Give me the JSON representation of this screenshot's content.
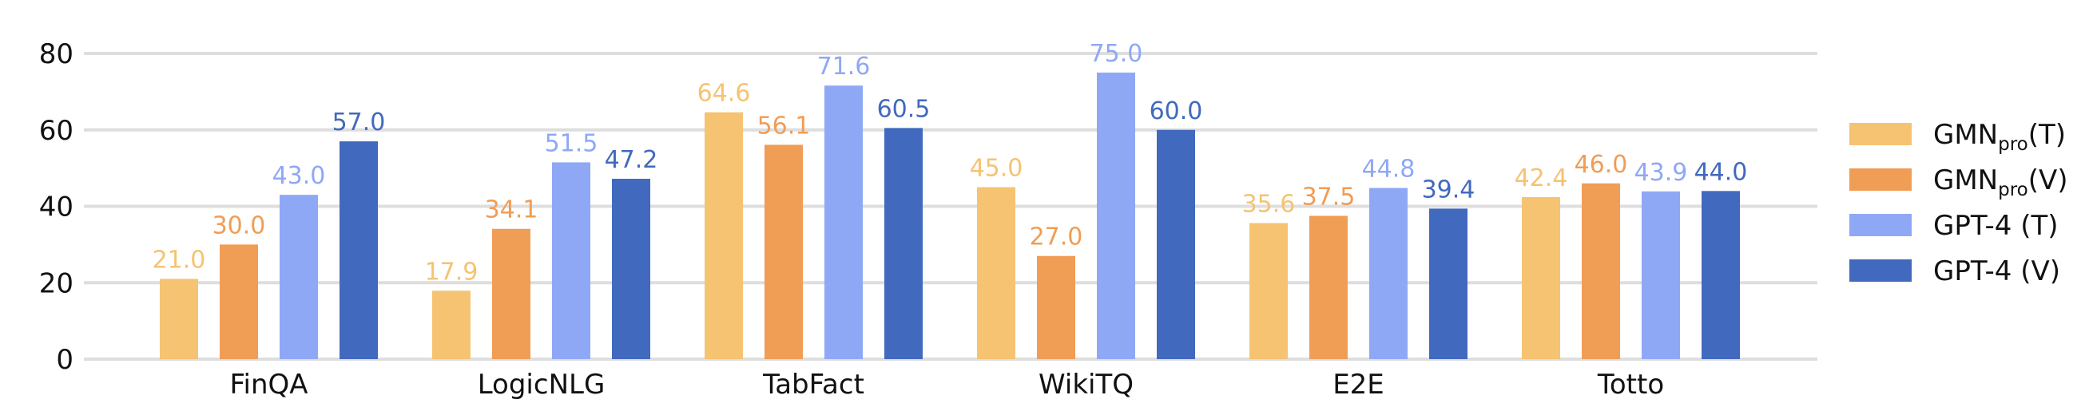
{
  "chart_data": {
    "type": "bar",
    "categories": [
      "FinQA",
      "LogicNLG",
      "TabFact",
      "WikiTQ",
      "E2E",
      "Totto"
    ],
    "series": [
      {
        "name": "GMN_pro(T)",
        "legend": {
          "base": "GMN",
          "sub": "pro",
          "suffix": "(T)"
        },
        "color": "#F5C372",
        "values": [
          21.0,
          17.9,
          64.6,
          45.0,
          35.6,
          42.4
        ]
      },
      {
        "name": "GMN_pro(V)",
        "legend": {
          "base": "GMN",
          "sub": "pro",
          "suffix": "(V)"
        },
        "color": "#F09D56",
        "values": [
          30.0,
          34.1,
          56.1,
          27.0,
          37.5,
          46.0
        ]
      },
      {
        "name": "GPT-4 (T)",
        "legend": {
          "base": "GPT-4 (T)",
          "sub": "",
          "suffix": ""
        },
        "color": "#8FA8F6",
        "values": [
          43.0,
          51.5,
          71.6,
          75.0,
          44.8,
          43.9
        ]
      },
      {
        "name": "GPT-4 (V)",
        "legend": {
          "base": "GPT-4 (V)",
          "sub": "",
          "suffix": ""
        },
        "color": "#4169BE",
        "values": [
          57.0,
          47.2,
          60.5,
          60.0,
          39.4,
          44.0
        ]
      }
    ],
    "y_ticks": [
      "0",
      "20",
      "40",
      "60",
      "80"
    ],
    "ylim": [
      0,
      80
    ],
    "grid": "horizontal",
    "legend_position": "right",
    "title": "",
    "xlabel": "",
    "ylabel": ""
  }
}
